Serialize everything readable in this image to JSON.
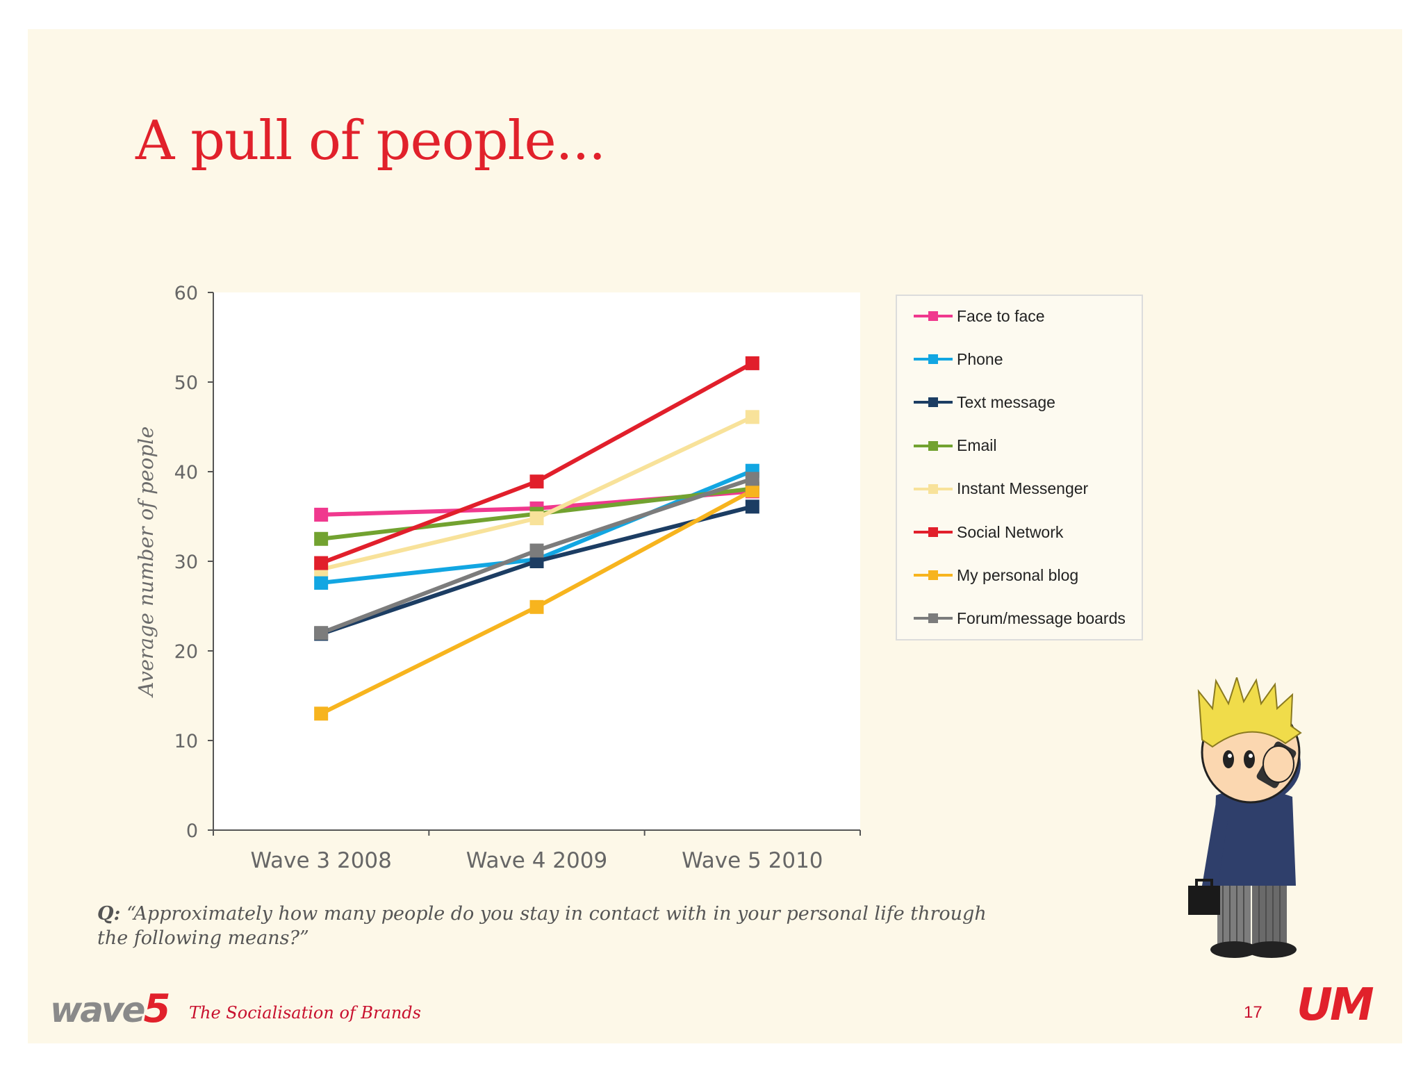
{
  "slide": {
    "title": "A pull of people...",
    "question_label": "Q:",
    "question_text": "“Approximately how many people do you stay in contact with in your personal life through the following means?”",
    "footer_brand": "The Socialisation of Brands",
    "page_number": "17",
    "logo_left_text": "wave",
    "logo_left_number": "5",
    "logo_right_text": "UM",
    "character_icon": "businessman-on-phone-icon"
  },
  "chart_data": {
    "type": "line",
    "title": "",
    "xlabel": "",
    "ylabel": "Average number of people",
    "categories": [
      "Wave 3 2008",
      "Wave 4 2009",
      "Wave 5 2010"
    ],
    "ylim": [
      0,
      60
    ],
    "yticks": [
      0,
      10,
      20,
      30,
      40,
      50,
      60
    ],
    "grid": false,
    "legend_position": "right",
    "series": [
      {
        "name": "Face to face",
        "values": [
          35.2,
          35.9,
          37.8
        ],
        "color": "#f0388e"
      },
      {
        "name": "Phone",
        "values": [
          27.6,
          30.2,
          40.1
        ],
        "color": "#12a6e2"
      },
      {
        "name": "Text message",
        "values": [
          21.9,
          30.0,
          36.1
        ],
        "color": "#1c3d63"
      },
      {
        "name": "Email",
        "values": [
          32.5,
          35.3,
          38.1
        ],
        "color": "#72a230"
      },
      {
        "name": "Instant Messenger",
        "values": [
          29.1,
          34.8,
          46.1
        ],
        "color": "#f8e29a"
      },
      {
        "name": "Social Network",
        "values": [
          29.8,
          38.9,
          52.1
        ],
        "color": "#e11f2b"
      },
      {
        "name": "My personal blog",
        "values": [
          13.0,
          24.9,
          37.9
        ],
        "color": "#f7b41e"
      },
      {
        "name": "Forum/message boards",
        "values": [
          22.0,
          31.2,
          39.2
        ],
        "color": "#7c7c7c"
      }
    ]
  }
}
